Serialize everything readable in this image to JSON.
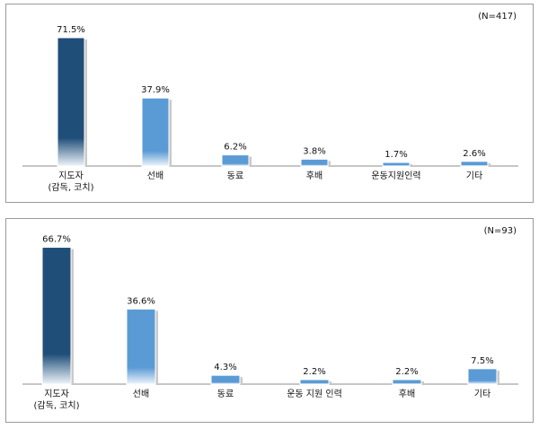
{
  "chart_data": [
    {
      "type": "bar",
      "n_label": "(N=417)",
      "categories": [
        [
          "지도자",
          "(감독, 코치)"
        ],
        [
          "선배"
        ],
        [
          "동료"
        ],
        [
          "후배"
        ],
        [
          "운동지원인력"
        ],
        [
          "기타"
        ]
      ],
      "values": [
        71.5,
        37.9,
        6.2,
        3.8,
        1.7,
        2.6
      ],
      "value_labels": [
        "71.5%",
        "37.9%",
        "6.2%",
        "3.8%",
        "1.7%",
        "2.6%"
      ],
      "ylim": [
        0,
        75
      ],
      "grid": false,
      "colors": [
        "#1f4e79",
        "#5b9bd5",
        "#5b9bd5",
        "#5b9bd5",
        "#5b9bd5",
        "#5b9bd5"
      ]
    },
    {
      "type": "bar",
      "n_label": "(N=93)",
      "categories": [
        [
          "지도자",
          "(감독, 코치)"
        ],
        [
          "선배"
        ],
        [
          "동료"
        ],
        [
          "운동 지원 인력"
        ],
        [
          "후배"
        ],
        [
          "기타"
        ]
      ],
      "values": [
        66.7,
        36.6,
        4.3,
        2.2,
        2.2,
        7.5
      ],
      "value_labels": [
        "66.7%",
        "36.6%",
        "4.3%",
        "2.2%",
        "2.2%",
        "7.5%"
      ],
      "ylim": [
        0,
        70
      ],
      "grid": false,
      "colors": [
        "#1f4e79",
        "#5b9bd5",
        "#5b9bd5",
        "#5b9bd5",
        "#5b9bd5",
        "#5b9bd5"
      ]
    }
  ]
}
